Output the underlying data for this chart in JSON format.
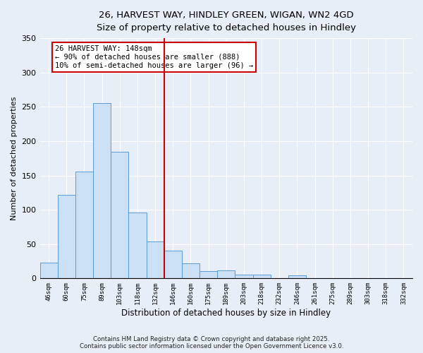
{
  "title1": "26, HARVEST WAY, HINDLEY GREEN, WIGAN, WN2 4GD",
  "title2": "Size of property relative to detached houses in Hindley",
  "bar_labels": [
    "46sqm",
    "60sqm",
    "75sqm",
    "89sqm",
    "103sqm",
    "118sqm",
    "132sqm",
    "146sqm",
    "160sqm",
    "175sqm",
    "189sqm",
    "203sqm",
    "218sqm",
    "232sqm",
    "246sqm",
    "261sqm",
    "275sqm",
    "289sqm",
    "303sqm",
    "318sqm",
    "332sqm"
  ],
  "bar_values": [
    23,
    122,
    156,
    255,
    184,
    96,
    54,
    40,
    22,
    11,
    12,
    5,
    6,
    0,
    4,
    0,
    0,
    0,
    0,
    0,
    0
  ],
  "bar_color": "#cce0f5",
  "bar_edge_color": "#5b9bd5",
  "vline_index": 7,
  "vline_color": "#cc0000",
  "ylim_max": 350,
  "yticks": [
    0,
    50,
    100,
    150,
    200,
    250,
    300,
    350
  ],
  "ylabel": "Number of detached properties",
  "xlabel": "Distribution of detached houses by size in Hindley",
  "annotation_title": "26 HARVEST WAY: 148sqm",
  "annotation_line1": "← 90% of detached houses are smaller (888)",
  "annotation_line2": "10% of semi-detached houses are larger (96) →",
  "annotation_box_color": "#ffffff",
  "annotation_box_edge": "#cc0000",
  "footer1": "Contains HM Land Registry data © Crown copyright and database right 2025.",
  "footer2": "Contains public sector information licensed under the Open Government Licence v3.0.",
  "background_color": "#e8eef8",
  "grid_color": "#ffffff",
  "title1_fontsize": 10,
  "title2_fontsize": 9
}
